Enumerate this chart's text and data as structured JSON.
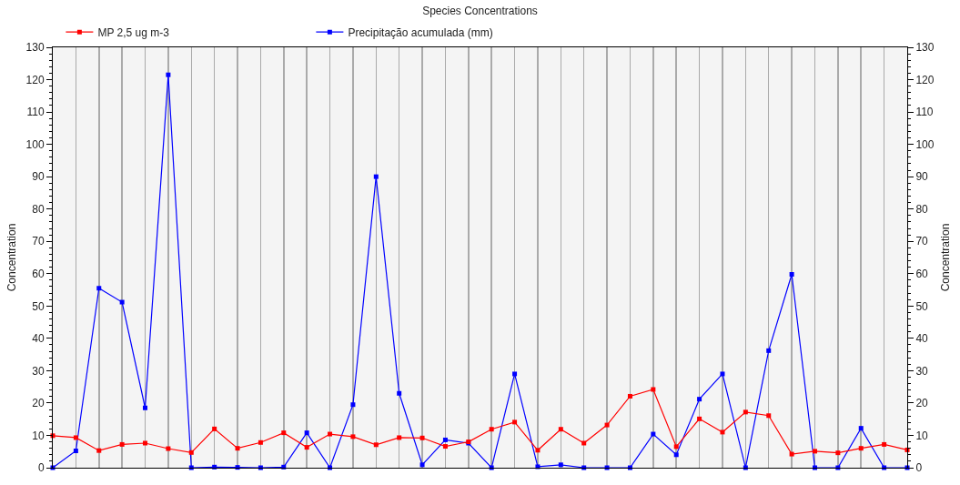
{
  "chart_data": {
    "type": "line",
    "title": "Species Concentrations",
    "ylabel": "Concentration",
    "y2label": "Concentration",
    "categories": [
      null,
      null,
      null,
      null,
      null,
      null,
      null,
      null,
      null,
      null,
      null,
      null,
      null,
      null,
      null,
      null,
      null,
      null,
      null,
      null,
      null,
      null,
      null,
      null,
      null,
      null,
      null,
      null,
      null,
      null,
      null,
      null,
      null,
      null,
      null,
      null,
      null,
      null
    ],
    "series": [
      {
        "name": "MP 2,5 ug m-3",
        "color": "#ff0000",
        "values": [
          9.9,
          9.3,
          5.3,
          7.2,
          7.6,
          5.9,
          4.7,
          12.0,
          6.0,
          7.8,
          10.8,
          6.3,
          10.4,
          9.6,
          7.1,
          9.3,
          9.2,
          6.6,
          8.0,
          11.9,
          14.1,
          5.4,
          11.9,
          7.6,
          13.2,
          22.1,
          24.2,
          6.5,
          15.1,
          11.0,
          17.2,
          16.1,
          4.2,
          5.1,
          4.6,
          6.0,
          7.2,
          5.5
        ]
      },
      {
        "name": "Precipitação acumulada (mm)",
        "color": "#0000ff",
        "values": [
          0,
          5.2,
          55.5,
          51.2,
          18.5,
          121.5,
          0,
          0.2,
          0.1,
          0,
          0.2,
          10.8,
          0,
          19.5,
          90,
          23,
          0.9,
          8.6,
          7.6,
          0,
          29,
          0.3,
          0.9,
          0,
          0,
          0,
          10.4,
          4,
          21.2,
          29,
          0,
          36.2,
          59.8,
          0,
          0,
          12.2,
          0,
          0
        ]
      }
    ],
    "ylim": [
      0,
      130
    ],
    "yticks": [
      0,
      10,
      20,
      30,
      40,
      50,
      60,
      70,
      80,
      90,
      100,
      110,
      120,
      130
    ],
    "y2lim": [
      0,
      130
    ],
    "y2ticks": [
      0,
      10,
      20,
      30,
      40,
      50,
      60,
      70,
      80,
      90,
      100,
      110,
      120,
      130
    ],
    "grid": "x",
    "legend": "top",
    "marker": "square",
    "line_style": "solid"
  }
}
